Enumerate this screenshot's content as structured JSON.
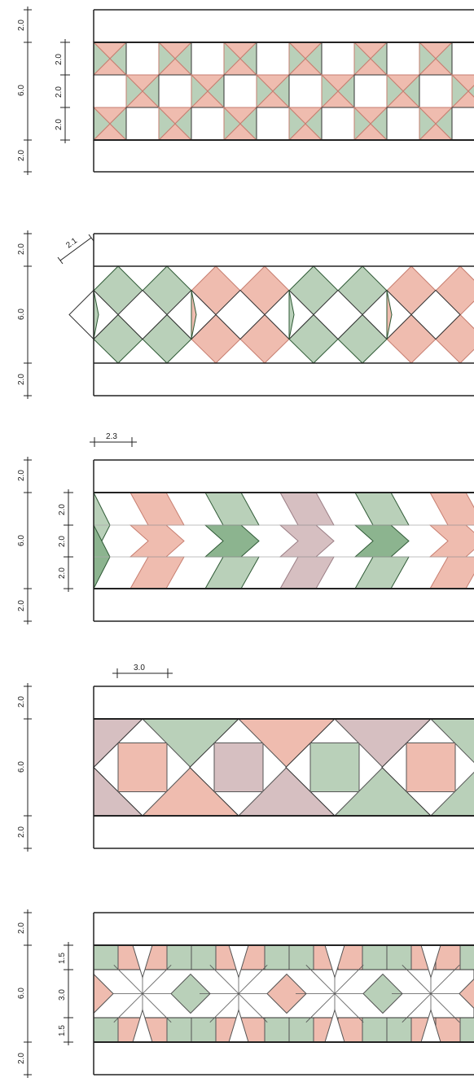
{
  "colors": {
    "green": "#b9d0b9",
    "green_dark": "#8cb48f",
    "green_stroke": "#2f5a36",
    "pink": "#efbcaf",
    "pink_stroke": "#c77e70",
    "mauve": "#d6bfc1",
    "mauve_stroke": "#9a7d84",
    "line": "#222222"
  },
  "patterns": [
    {
      "name": "squares-with-crossed-tiles",
      "dims_left": [
        "2.0",
        "6.0",
        "2.0"
      ],
      "dims_inner": [
        "2.0",
        "2.0",
        "2.0"
      ],
      "dims_top": null
    },
    {
      "name": "rotated-squares",
      "dims_left": [
        "2.0",
        "6.0",
        "2.0"
      ],
      "dims_inner": null,
      "dims_top": null,
      "diag_label": "2.1"
    },
    {
      "name": "chevrons",
      "dims_left": [
        "2.0",
        "6.0",
        "2.0"
      ],
      "dims_inner": [
        "2.0",
        "2.0",
        "2.0"
      ],
      "dims_top": "2.3"
    },
    {
      "name": "triangles-and-squares",
      "dims_left": [
        "2.0",
        "6.0",
        "2.0"
      ],
      "dims_inner": null,
      "dims_top": "3.0"
    },
    {
      "name": "stars",
      "dims_left": [
        "2.0",
        "6.0",
        "2.0"
      ],
      "dims_inner": [
        "1.5",
        "3.0",
        "1.5"
      ],
      "dims_top": null
    }
  ]
}
